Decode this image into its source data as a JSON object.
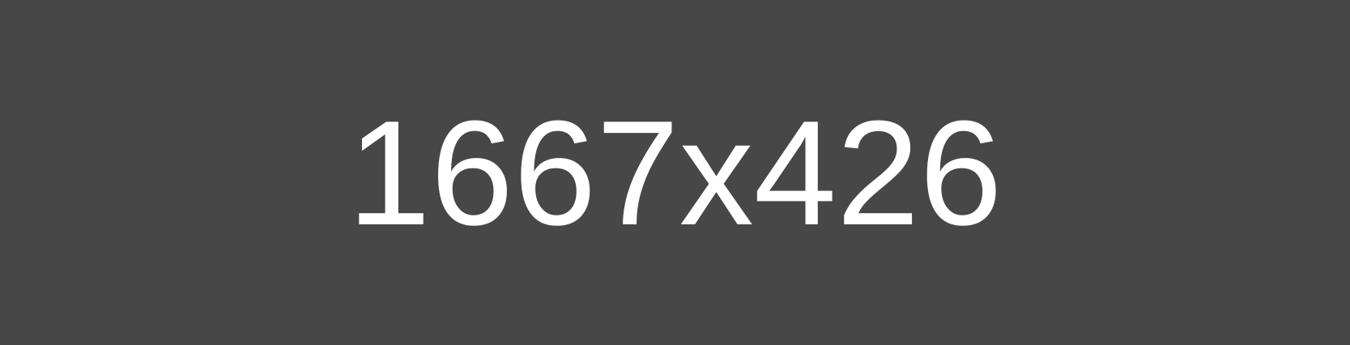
{
  "placeholder": {
    "text": "1667x426",
    "background_color": "#474747",
    "text_color": "#ffffff"
  }
}
